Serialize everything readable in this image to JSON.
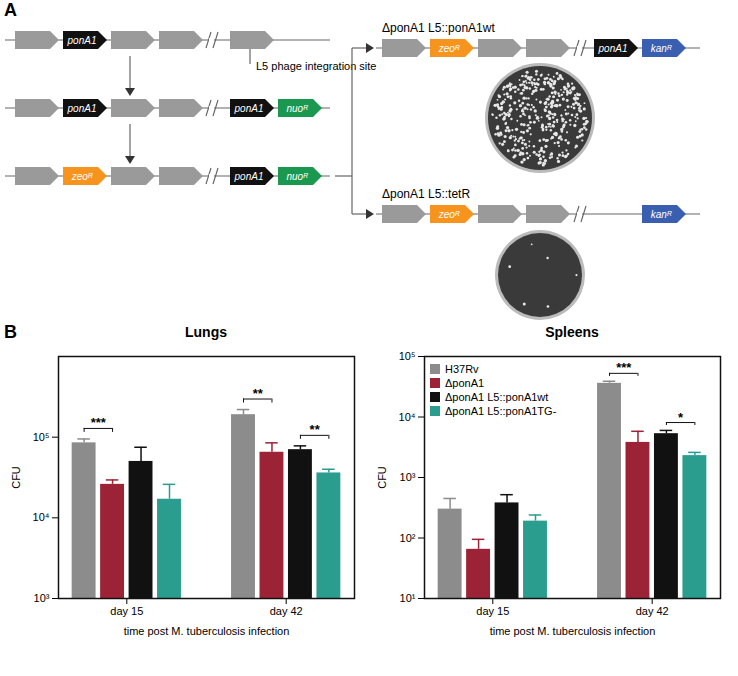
{
  "diagram": {
    "label": "A",
    "site_label": "L5 phage integration site",
    "ponA1": "ponA1",
    "nuo": "nuoᴿ",
    "zeo": "zeoᴿ",
    "kan": "kanᴿ",
    "strains": [
      "ΔponA1 L5::ponA1wt",
      "ΔponA1 L5::tetR"
    ]
  },
  "panel_label": "B",
  "chart_data": [
    {
      "type": "bar",
      "title": "Lungs",
      "categories": [
        "day 15",
        "day 42"
      ],
      "series": [
        {
          "name": "H37Rv",
          "color": "#8c8c8c",
          "values": [
            85000,
            190000
          ],
          "errors": [
            10000,
            30000
          ]
        },
        {
          "name": "ΔponA1",
          "color": "#9b2335",
          "values": [
            26000,
            65000
          ],
          "errors": [
            3500,
            20000
          ]
        },
        {
          "name": "ΔponA1 L5::ponA1wt",
          "color": "#111111",
          "values": [
            50000,
            70000
          ],
          "errors": [
            25000,
            8000
          ]
        },
        {
          "name": "ΔponA1 L5::ponA1TG-",
          "color": "#2a9d8f",
          "values": [
            17000,
            36000
          ],
          "errors": [
            9000,
            4000
          ]
        }
      ],
      "log": "y",
      "ylim": [
        1000,
        1000000
      ],
      "yticks": [
        {
          "value": 1000,
          "label": "10³"
        },
        {
          "value": 10000,
          "label": "10⁴"
        },
        {
          "value": 100000,
          "label": "10⁵"
        }
      ],
      "ylabel": "CFU",
      "xlabel": "time post M. tuberculosis infection",
      "annotations": [
        {
          "category": "day 15",
          "from": "H37Rv",
          "to": "ΔponA1",
          "text": "***"
        },
        {
          "category": "day 42",
          "from": "H37Rv",
          "to": "ΔponA1",
          "text": "**"
        },
        {
          "category": "day 42",
          "from": "ΔponA1 L5::ponA1wt",
          "to": "ΔponA1 L5::ponA1TG-",
          "text": "**"
        }
      ]
    },
    {
      "type": "bar",
      "title": "Spleens",
      "categories": [
        "day 15",
        "day 42"
      ],
      "series": [
        {
          "name": "H37Rv",
          "color": "#8c8c8c",
          "values": [
            300,
            36000
          ],
          "errors": [
            150,
            3000
          ]
        },
        {
          "name": "ΔponA1",
          "color": "#9b2335",
          "values": [
            65,
            3800
          ],
          "errors": [
            30,
            2000
          ]
        },
        {
          "name": "ΔponA1 L5::ponA1wt",
          "color": "#111111",
          "values": [
            380,
            5300
          ],
          "errors": [
            140,
            700
          ]
        },
        {
          "name": "ΔponA1 L5::ponA1TG-",
          "color": "#2a9d8f",
          "values": [
            190,
            2300
          ],
          "errors": [
            50,
            300
          ]
        }
      ],
      "log": "y",
      "ylim": [
        10,
        100000
      ],
      "yticks": [
        {
          "value": 10,
          "label": "10¹"
        },
        {
          "value": 100,
          "label": "10²"
        },
        {
          "value": 1000,
          "label": "10³"
        },
        {
          "value": 10000,
          "label": "10⁴"
        },
        {
          "value": 100000,
          "label": "10⁵"
        }
      ],
      "ylabel": "CFU",
      "xlabel": "time post M. tuberculosis infection",
      "legend": "upper left",
      "annotations": [
        {
          "category": "day 42",
          "from": "H37Rv",
          "to": "ΔponA1",
          "text": "***"
        },
        {
          "category": "day 42",
          "from": "ΔponA1 L5::ponA1wt",
          "to": "ΔponA1 L5::ponA1TG-",
          "text": "*"
        }
      ]
    }
  ]
}
